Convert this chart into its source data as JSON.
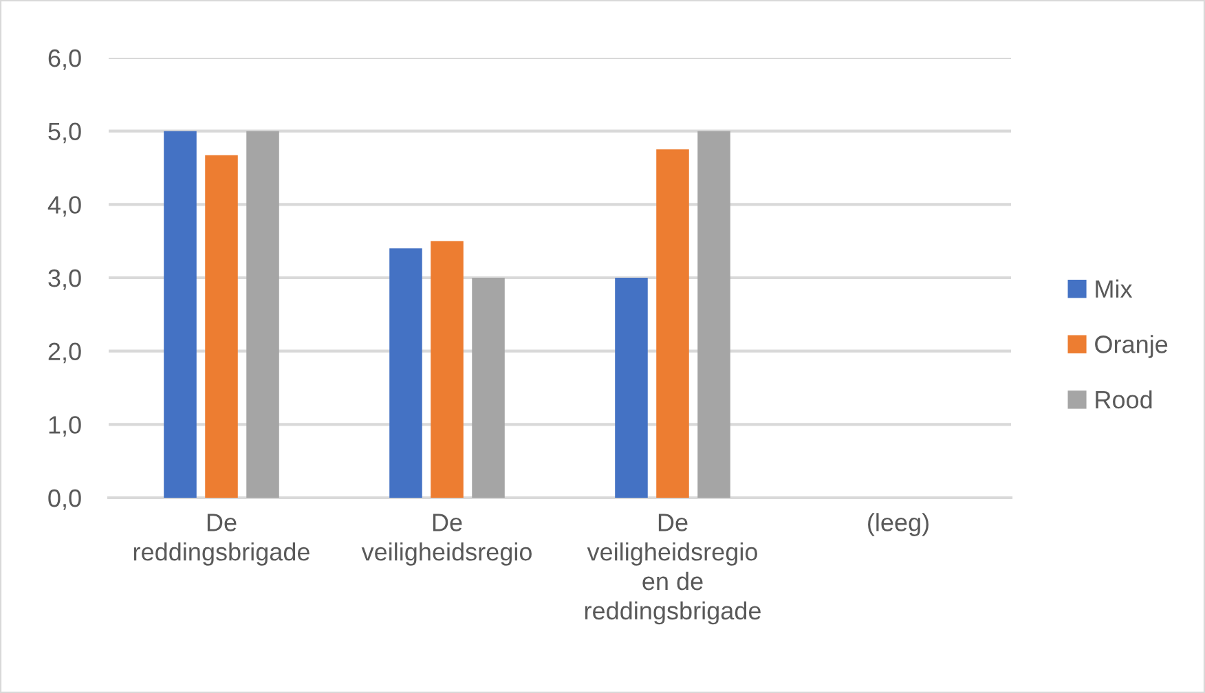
{
  "chart_data": {
    "type": "bar",
    "categories": [
      "De reddingsbrigade",
      "De veiligheidsregio",
      "De veiligheidsregio en de reddingsbrigade",
      "(leeg)"
    ],
    "series": [
      {
        "name": "Mix",
        "color": "#4472c4",
        "values": [
          5.0,
          3.4,
          3.0,
          null
        ]
      },
      {
        "name": "Oranje",
        "color": "#ed7d31",
        "values": [
          4.67,
          3.5,
          4.75,
          null
        ]
      },
      {
        "name": "Rood",
        "color": "#a5a5a5",
        "values": [
          5.0,
          3.0,
          5.0,
          null
        ]
      }
    ],
    "ylim": [
      0,
      6
    ],
    "yticks": [
      {
        "value": 0,
        "label": "0,0"
      },
      {
        "value": 1,
        "label": "1,0"
      },
      {
        "value": 2,
        "label": "2,0"
      },
      {
        "value": 3,
        "label": "3,0"
      },
      {
        "value": 4,
        "label": "4,0"
      },
      {
        "value": 5,
        "label": "5,0"
      },
      {
        "value": 6,
        "label": "6,0"
      }
    ],
    "grid": "y",
    "legend": "right"
  }
}
